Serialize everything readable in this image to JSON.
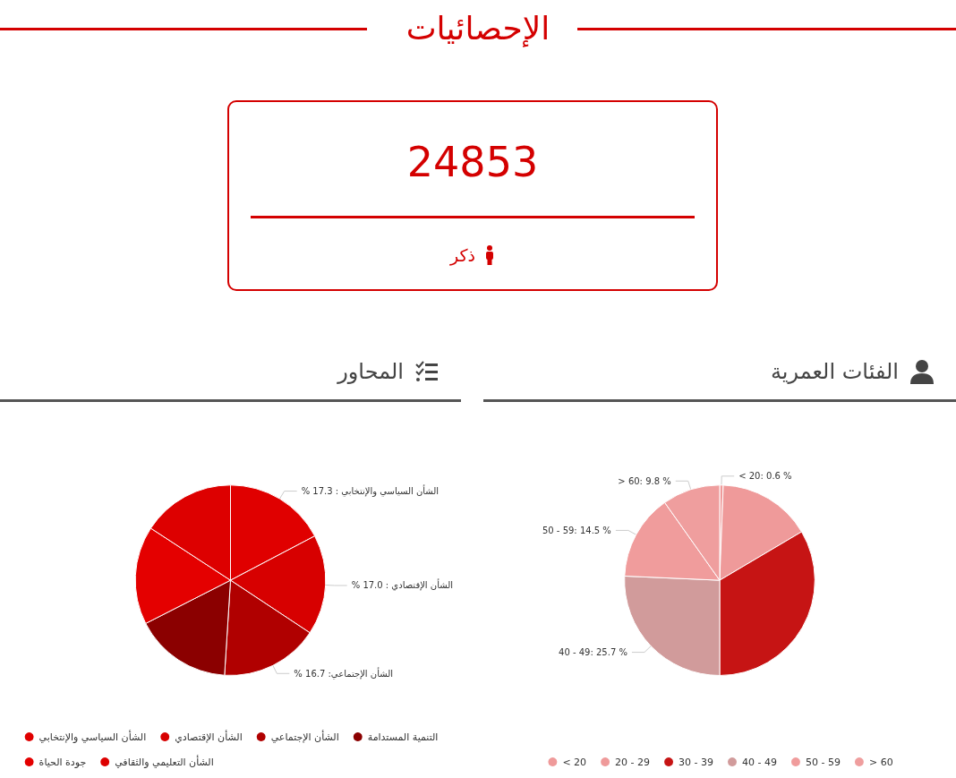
{
  "chart_data": [
    {
      "type": "other",
      "title": "الإحصائيات",
      "annotations": [
        "24853",
        "ذكر"
      ]
    },
    {
      "type": "pie",
      "title": "المحاور",
      "legend": "bottom",
      "categories": [
        "الشأن السياسي والإنتخابي",
        "الشأن الإقتصادي",
        "الشأن الإجتماعي",
        "التنمية المستدامة",
        "جودة الحياة",
        "الشأن التعليمي والثقافي"
      ],
      "values": [
        17.3,
        17.0,
        16.7,
        16.5,
        16.7,
        15.8
      ],
      "colors": [
        "#e00000",
        "#d70000",
        "#b00000",
        "#8b0000",
        "#e40000",
        "#dd0000"
      ],
      "value_labels": [
        "% الشأن السياسي والإنتخابي : 17.3",
        "% الشأن الإقتصادي : 17.0",
        "% الشأن الإجتماعي: 16.7",
        null,
        null,
        null
      ]
    },
    {
      "type": "pie",
      "title": "الفئات العمرية",
      "legend": "bottom",
      "categories": [
        "< 20",
        "20 - 29",
        "30 - 39",
        "40 - 49",
        "50 - 59",
        "> 60"
      ],
      "values": [
        0.6,
        15.9,
        33.5,
        25.7,
        14.5,
        9.8
      ],
      "colors": [
        "#ef9a9a",
        "#ef9a9a",
        "#c61414",
        "#d19b9b",
        "#f09c9c",
        "#ef9e9e"
      ],
      "value_labels": [
        "< 20: 0.6 %",
        null,
        null,
        "40 - 49: 25.7 %",
        "50 - 59: 14.5 %",
        "> 60: 9.8 %"
      ]
    }
  ]
}
